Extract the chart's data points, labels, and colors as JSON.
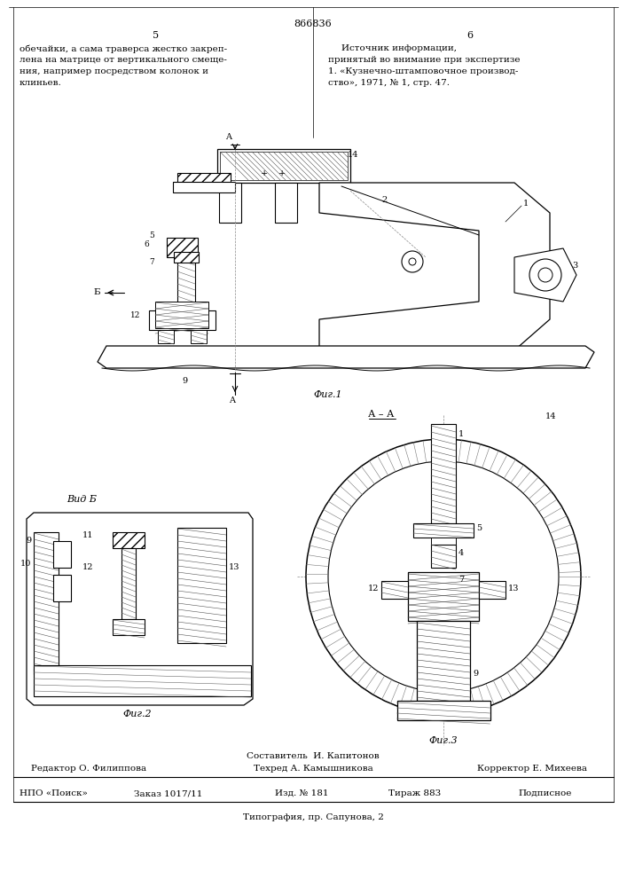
{
  "patent_number": "866836",
  "page_left": "5",
  "page_right": "6",
  "text_left_lines": [
    "обечайки, а сама траверса жестко закреп-",
    "лена на матрице от вертикального смеще-",
    "ния, например посредством колонок и",
    "клиньев."
  ],
  "text_right_lines": [
    "Источник информации,",
    "принятый во внимание при экспертизе",
    "1. «Кузнечно-штамповочное производ-",
    "ство», 1971, № 1, стр. 47."
  ],
  "fig1_label": "Фиг.1",
  "fig2_label": "Фиг.2",
  "fig3_label": "Фиг.3",
  "section_label": "А – А",
  "view_label": "Вид Б",
  "footer_author": "Составитель  И. Капитонов",
  "footer_editor": "Редактор О. Филиппова",
  "footer_tech": "Техред А. Камышникова",
  "footer_corrector": "Корректор Е. Михеева",
  "footer_npo": "НПО «Поиск»",
  "footer_order": "Заказ 1017/11",
  "footer_iss": "Изд. № 181",
  "footer_copies": "Тираж 883",
  "footer_type": "Подписное",
  "footer_printing": "Типография, пр. Сапунова, 2",
  "bg_color": "#ffffff"
}
